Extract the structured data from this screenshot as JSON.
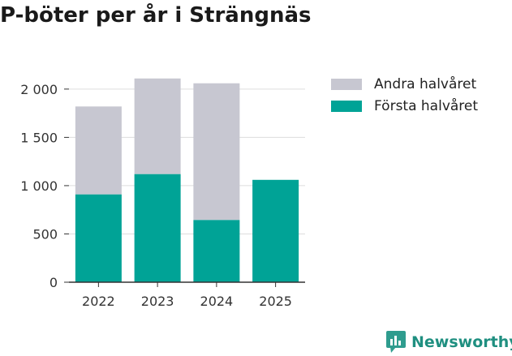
{
  "title": "P-böter per år i Strängnäs",
  "chart_data": {
    "type": "bar",
    "stacked": true,
    "title": "P-böter per år i Strängnäs",
    "categories": [
      "2022",
      "2023",
      "2024",
      "2025"
    ],
    "series": [
      {
        "name": "Första halvåret",
        "color": "#00a396",
        "values": [
          910,
          1120,
          645,
          1060
        ]
      },
      {
        "name": "Andra halvåret",
        "color": "#c7c7d1",
        "values": [
          910,
          990,
          1415,
          0
        ]
      }
    ],
    "ylim": [
      0,
      2150
    ],
    "yticks": [
      0,
      500,
      1000,
      1500,
      2000
    ],
    "ytick_labels": [
      "0",
      "500",
      "1 000",
      "1 500",
      "2 000"
    ],
    "grid": true,
    "xlabel": "",
    "ylabel": ""
  },
  "legend": [
    {
      "label": "Andra halvåret",
      "color": "#c7c7d1"
    },
    {
      "label": "Första halvåret",
      "color": "#00a396"
    }
  ],
  "brand": {
    "name": "Newsworthy",
    "color": "#1f8f80"
  }
}
